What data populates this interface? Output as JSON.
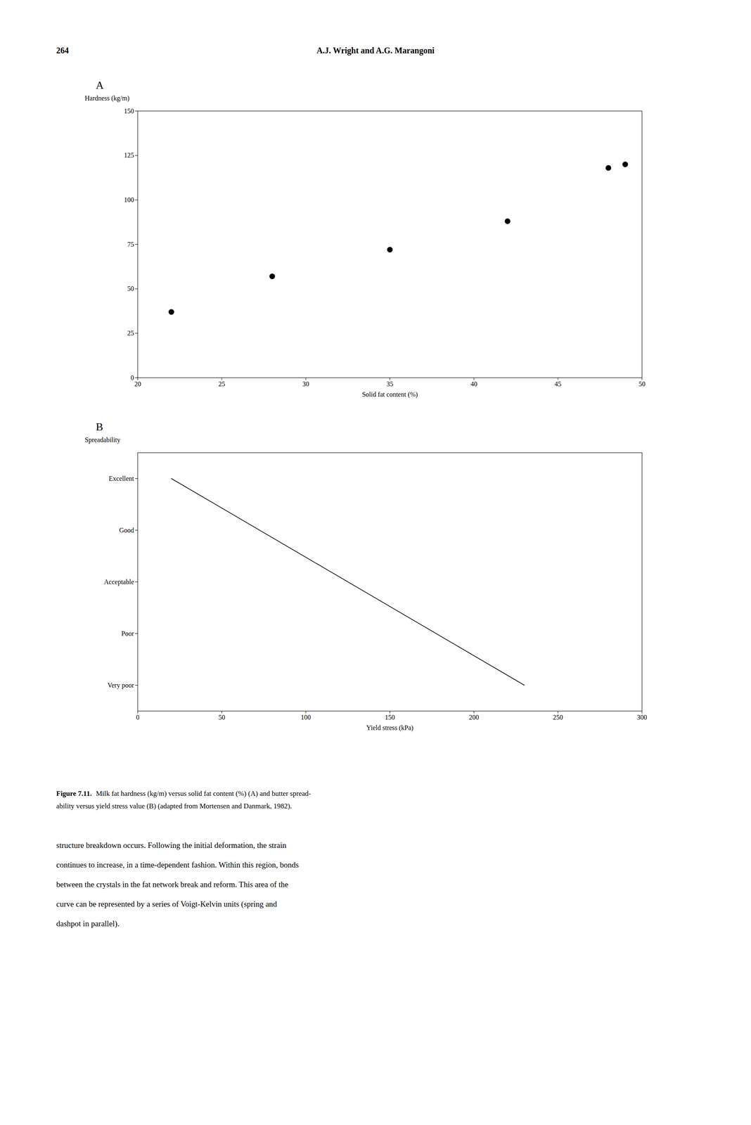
{
  "page_number": "264",
  "page_header": "A.J. Wright and A.G. Marangoni",
  "chart_data": [
    {
      "type": "scatter",
      "title": "A",
      "x": [
        22,
        28,
        35,
        42,
        48,
        49
      ],
      "values": [
        37,
        57,
        72,
        88,
        118,
        120
      ],
      "xlabel": "Solid fat content (%)",
      "ylabel": "Hardness (kg/m)",
      "xlim": [
        20,
        50
      ],
      "ylim": [
        0,
        150
      ],
      "xticks": [
        20,
        25,
        30,
        35,
        40,
        45,
        50
      ],
      "yticks": [
        0,
        25,
        50,
        75,
        100,
        125,
        150
      ],
      "marker": "circle",
      "color": "black",
      "grid": false
    },
    {
      "type": "line",
      "title": "B",
      "x": [
        20,
        230
      ],
      "values": [
        4,
        0
      ],
      "xlabel": "Yield stress (kPa)",
      "ylabel": "Spreadability",
      "xlim": [
        0,
        300
      ],
      "ylim": [
        -0.5,
        4.5
      ],
      "xticks": [
        0,
        50,
        100,
        150,
        200,
        250,
        300
      ],
      "yticks": [
        {
          "value": 0,
          "label": "Very poor"
        },
        {
          "value": 1,
          "label": "Poor"
        },
        {
          "value": 2,
          "label": "Acceptable"
        },
        {
          "value": 3,
          "label": "Good"
        },
        {
          "value": 4,
          "label": "Excellent"
        }
      ],
      "color": "black",
      "line_style": "solid",
      "grid": false
    }
  ],
  "caption_bold": "Figure 7.11.",
  "caption_lines": [
    "Milk fat hardness (kg/m) versus solid fat content (%) (A) and butter spread-",
    "ability versus yield stress value (B) (adapted from Mortensen and Danmark, 1982)."
  ],
  "body_text_lines": [
    "structure breakdown occurs. Following the initial deformation, the strain",
    "continues to increase, in a time-dependent fashion. Within this region, bonds",
    "between the crystals in the fat network break and reform. This area of the",
    "curve can be represented by a series of Voigt-Kelvin units (spring and",
    "dashpot in parallel)."
  ]
}
